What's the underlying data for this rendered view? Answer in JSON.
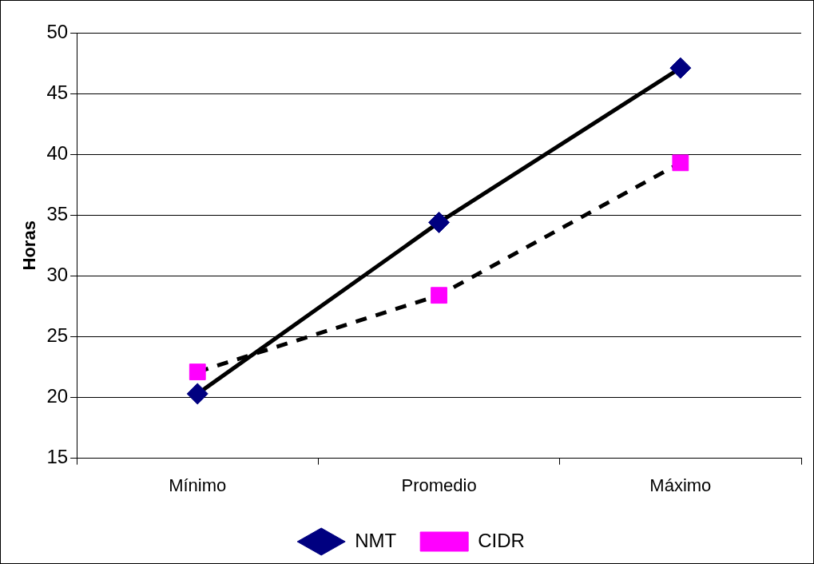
{
  "chart_data": {
    "type": "line",
    "ylabel": "Horas",
    "categories": [
      "Mínimo",
      "Promedio",
      "Máximo"
    ],
    "series": [
      {
        "name": "NMT",
        "color": "#000080",
        "values": [
          20.3,
          34.4,
          47.1
        ],
        "marker": "diamond",
        "line_style": "solid"
      },
      {
        "name": "CIDR",
        "color": "#ff00ff",
        "values": [
          22.1,
          28.4,
          39.3
        ],
        "marker": "square",
        "line_style": "dashed"
      }
    ],
    "ylim": [
      15,
      50
    ],
    "yticks": [
      15,
      20,
      25,
      30,
      35,
      40,
      45,
      50
    ],
    "grid": "y",
    "legend": "bottom"
  }
}
